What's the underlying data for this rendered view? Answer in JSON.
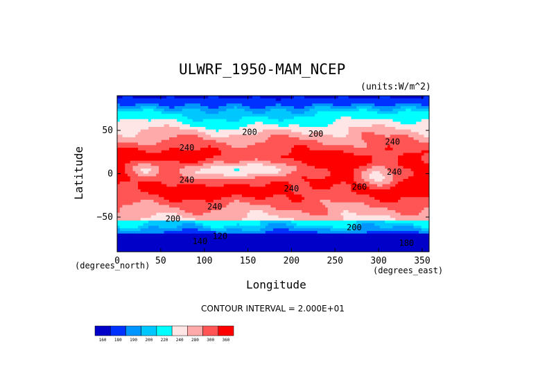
{
  "chart_data": {
    "type": "heatmap",
    "subtype": "filled-contour-map",
    "title": "ULWRF_1950-MAM_NCEP",
    "units_label": "(units:W/m^2)",
    "xlabel": "Longitude",
    "ylabel": "Latitude",
    "x_units_label": "(degrees_east)",
    "y_units_label": "(degrees_north)",
    "xlim": [
      0,
      358
    ],
    "ylim": [
      -90,
      90
    ],
    "x_ticks": [
      0,
      50,
      100,
      150,
      200,
      250,
      300,
      350
    ],
    "y_ticks": [
      50,
      0,
      -50
    ],
    "y_tick_labels": [
      "50",
      "0",
      "−50"
    ],
    "contour_interval_text": "CONTOUR INTERVAL = 2.000E+01",
    "contour_labels": [
      {
        "text": "200",
        "lon": 152,
        "lat": 48
      },
      {
        "text": "200",
        "lon": 228,
        "lat": 46
      },
      {
        "text": "240",
        "lon": 316,
        "lat": 37
      },
      {
        "text": "240",
        "lon": 80,
        "lat": 30
      },
      {
        "text": "240",
        "lon": 80,
        "lat": -7
      },
      {
        "text": "240",
        "lon": 200,
        "lat": -17
      },
      {
        "text": "240",
        "lon": 112,
        "lat": -38
      },
      {
        "text": "200",
        "lon": 64,
        "lat": -52
      },
      {
        "text": "200",
        "lon": 272,
        "lat": -62
      },
      {
        "text": "180",
        "lon": 332,
        "lat": -80
      },
      {
        "text": "140",
        "lon": 95,
        "lat": -78
      },
      {
        "text": "120",
        "lon": 118,
        "lat": -72
      },
      {
        "text": "260",
        "lon": 278,
        "lat": -15
      },
      {
        "text": "240",
        "lon": 318,
        "lat": 2
      }
    ],
    "colorbar": {
      "levels": [
        "160",
        "180",
        "190",
        "200",
        "220",
        "240",
        "280",
        "300",
        "360"
      ],
      "colors": [
        "#0000c8",
        "#0032ff",
        "#0096ff",
        "#00c8ff",
        "#00ffff",
        "#ffe6e6",
        "#ffaaaa",
        "#ff5555",
        "#ff0000"
      ]
    }
  }
}
